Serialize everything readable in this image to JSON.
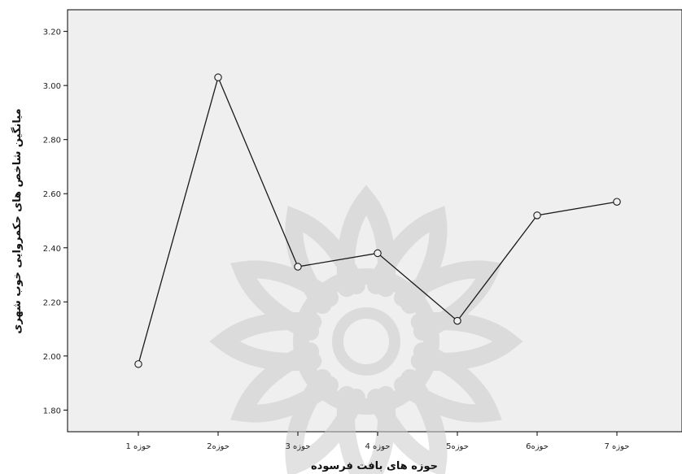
{
  "chart_data": {
    "type": "line",
    "title": "",
    "xlabel": "حوزه های بافت فرسوده",
    "ylabel": "میانگین شاخص های حکمروایی خوب شهری",
    "categories": [
      "حوزه 1",
      "حوزه2",
      "حوزه 3",
      "حوزه 4",
      "حوزه5",
      "حوزه6",
      "حوزه 7"
    ],
    "series": [
      {
        "values": [
          1.97,
          3.03,
          2.33,
          2.38,
          2.13,
          2.52,
          2.57
        ]
      }
    ],
    "ylim": [
      1.72,
      3.28
    ],
    "yticks": [
      1.8,
      2.0,
      2.2,
      2.4,
      2.6,
      2.8,
      3.0,
      3.2
    ],
    "ytick_labels": [
      "1.80",
      "2.00",
      "2.20",
      "2.40",
      "2.60",
      "2.80",
      "3.00",
      "3.20"
    ],
    "grid": false,
    "legend": "none",
    "colors": {
      "plot_background": "#efefef",
      "line": "#1a1a1a",
      "marker_fill": "#efefef",
      "axis": "#000000",
      "watermark": "#cccccc"
    }
  }
}
